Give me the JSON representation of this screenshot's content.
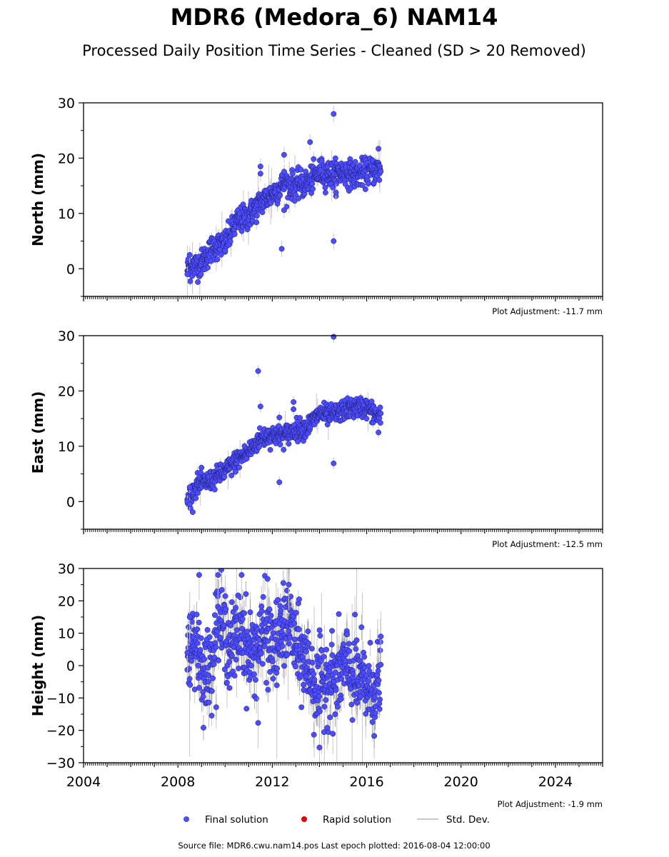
{
  "title": "MDR6 (Medora_6) NAM14",
  "subtitle": "Processed Daily Position Time Series - Cleaned (SD > 20 Removed)",
  "footer": "Source file: MDR6.cwu.nam14.pos  Last epoch plotted: 2016-08-04 12:00:00",
  "colors": {
    "final": "#4d4dff",
    "final_edge": "#1a1a66",
    "rapid": "#e60000",
    "stddev": "#c8c8c8",
    "noise": "#7a7a7a"
  },
  "legend": [
    {
      "label": "Final solution",
      "marker": "dot",
      "color": "#4d4dff"
    },
    {
      "label": "Rapid solution",
      "marker": "dot",
      "color": "#e60000"
    },
    {
      "label": "Std. Dev.",
      "marker": "line",
      "color": "#c8c8c8"
    }
  ],
  "chart_data": [
    {
      "type": "scatter",
      "ylabel": "North (mm)",
      "adjustment": "Plot Adjustment: -11.7 mm",
      "xlim": [
        2004,
        2026
      ],
      "ylim": [
        -5,
        30
      ],
      "yticks": [
        0,
        10,
        20,
        30
      ],
      "grid": false,
      "series": [
        {
          "name": "Final solution",
          "trend": [
            [
              2008.4,
              0
            ],
            [
              2009.0,
              1
            ],
            [
              2009.5,
              4
            ],
            [
              2010.0,
              4.5
            ],
            [
              2010.5,
              8.5
            ],
            [
              2011.0,
              9.5
            ],
            [
              2011.5,
              12
            ],
            [
              2012.0,
              13.5
            ],
            [
              2012.5,
              15.5
            ],
            [
              2013.0,
              15
            ],
            [
              2013.5,
              15.5
            ],
            [
              2014.0,
              17.5
            ],
            [
              2014.5,
              17
            ],
            [
              2015.0,
              17.5
            ],
            [
              2015.5,
              17
            ],
            [
              2016.0,
              17.5
            ],
            [
              2016.6,
              18
            ]
          ],
          "noise_sd": 1.2,
          "outliers": [
            [
              2008.5,
              2.5
            ],
            [
              2008.4,
              -1
            ],
            [
              2011.5,
              18.5
            ],
            [
              2011.5,
              17.2
            ],
            [
              2012.4,
              3.6
            ],
            [
              2012.5,
              20.6
            ],
            [
              2012.5,
              10.6
            ],
            [
              2013.6,
              22.9
            ],
            [
              2014.6,
              28
            ],
            [
              2014.6,
              5
            ],
            [
              2014.7,
              13.8
            ],
            [
              2016.5,
              21.7
            ]
          ]
        }
      ]
    },
    {
      "type": "scatter",
      "ylabel": "East (mm)",
      "adjustment": "Plot Adjustment: -12.5 mm",
      "xlim": [
        2004,
        2026
      ],
      "ylim": [
        -5,
        30
      ],
      "yticks": [
        0,
        10,
        20,
        30
      ],
      "grid": false,
      "series": [
        {
          "name": "Final solution",
          "trend": [
            [
              2008.4,
              0
            ],
            [
              2008.8,
              3
            ],
            [
              2009.5,
              4
            ],
            [
              2010.0,
              5.5
            ],
            [
              2010.5,
              7.5
            ],
            [
              2011.0,
              9
            ],
            [
              2011.5,
              11.5
            ],
            [
              2012.0,
              12
            ],
            [
              2012.5,
              12
            ],
            [
              2013.0,
              13
            ],
            [
              2013.5,
              13.5
            ],
            [
              2014.0,
              16
            ],
            [
              2014.5,
              15.5
            ],
            [
              2015.0,
              16.5
            ],
            [
              2015.5,
              17
            ],
            [
              2016.0,
              17
            ],
            [
              2016.6,
              15
            ]
          ],
          "noise_sd": 0.9,
          "outliers": [
            [
              2008.4,
              0
            ],
            [
              2008.5,
              -0.5
            ],
            [
              2008.5,
              2.6
            ],
            [
              2011.4,
              23.6
            ],
            [
              2011.5,
              17.2
            ],
            [
              2012.3,
              3.5
            ],
            [
              2012.3,
              15.2
            ],
            [
              2012.9,
              18
            ],
            [
              2012.9,
              16.7
            ],
            [
              2014.6,
              29.8
            ],
            [
              2014.6,
              6.9
            ],
            [
              2016.5,
              12.5
            ]
          ]
        }
      ]
    },
    {
      "type": "scatter",
      "ylabel": "Height (mm)",
      "adjustment": "Plot Adjustment: -1.9 mm",
      "xlim": [
        2004,
        2026
      ],
      "ylim": [
        -30,
        30
      ],
      "yticks": [
        -30,
        -20,
        -10,
        0,
        10,
        20,
        30
      ],
      "xticks": [
        2004,
        2008,
        2012,
        2016,
        2020,
        2024
      ],
      "grid": false,
      "series": [
        {
          "name": "Final solution",
          "trend": [
            [
              2008.4,
              4
            ],
            [
              2008.8,
              8
            ],
            [
              2009.0,
              0
            ],
            [
              2009.3,
              -3
            ],
            [
              2009.7,
              15
            ],
            [
              2010.0,
              10
            ],
            [
              2010.3,
              5
            ],
            [
              2010.7,
              12
            ],
            [
              2011.0,
              3
            ],
            [
              2011.3,
              5
            ],
            [
              2011.7,
              10
            ],
            [
              2012.0,
              5
            ],
            [
              2012.3,
              8
            ],
            [
              2012.7,
              15
            ],
            [
              2013.0,
              5
            ],
            [
              2013.5,
              0
            ],
            [
              2013.9,
              -8
            ],
            [
              2014.3,
              -3
            ],
            [
              2014.7,
              -5
            ],
            [
              2015.0,
              0
            ],
            [
              2015.4,
              -3
            ],
            [
              2015.8,
              -5
            ],
            [
              2016.2,
              -8
            ],
            [
              2016.6,
              -5
            ]
          ],
          "noise_sd": 6.5,
          "outliers": [
            [
              2008.4,
              4
            ],
            [
              2008.5,
              15
            ],
            [
              2008.9,
              28
            ],
            [
              2009.7,
              28
            ],
            [
              2010.7,
              28
            ],
            [
              2011.4,
              -17.7
            ],
            [
              2011.8,
              26.8
            ],
            [
              2012.7,
              25
            ],
            [
              2014.0,
              -25.3
            ],
            [
              2016.6,
              9
            ]
          ]
        }
      ]
    }
  ]
}
